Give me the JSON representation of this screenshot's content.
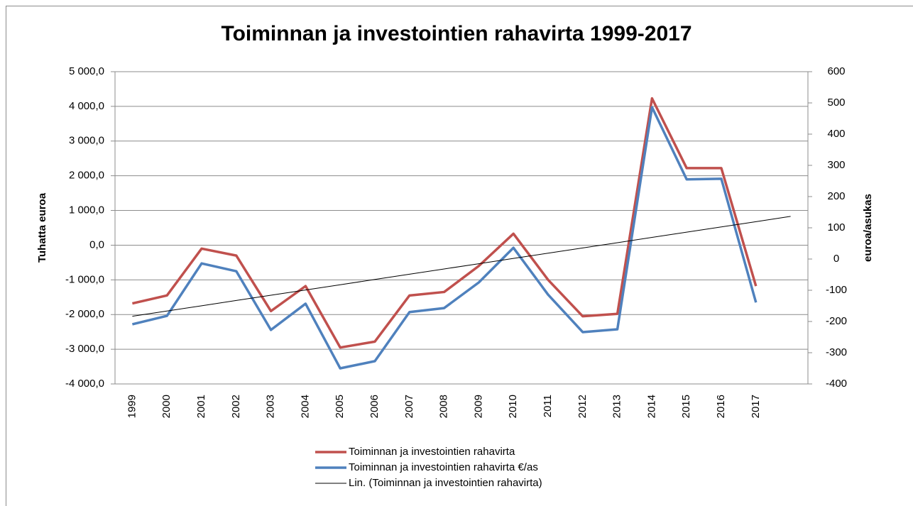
{
  "chart_data": {
    "type": "line",
    "title": "Toiminnan ja investointien rahavirta 1999-2017",
    "ylabel": "Tuhatta euroa",
    "y2label": "euroa/asukas",
    "categories": [
      "1999",
      "2000",
      "2001",
      "2002",
      "2003",
      "2004",
      "2005",
      "2006",
      "2007",
      "2008",
      "2009",
      "2010",
      "2011",
      "2012",
      "2013",
      "2014",
      "2015",
      "2016",
      "2017",
      null
    ],
    "ylim": [
      -4000,
      5000
    ],
    "yticks": [
      {
        "value": -4000,
        "label": "-4 000,0"
      },
      {
        "value": -3000,
        "label": "-3 000,0"
      },
      {
        "value": -2000,
        "label": "-2 000,0"
      },
      {
        "value": -1000,
        "label": "-1 000,0"
      },
      {
        "value": 0,
        "label": "0,0"
      },
      {
        "value": 1000,
        "label": "1 000,0"
      },
      {
        "value": 2000,
        "label": "2 000,0"
      },
      {
        "value": 3000,
        "label": "3 000,0"
      },
      {
        "value": 4000,
        "label": "4 000,0"
      },
      {
        "value": 5000,
        "label": "5 000,0"
      }
    ],
    "y2lim": [
      -400,
      600
    ],
    "y2ticks": [
      -400,
      -300,
      -200,
      -100,
      0,
      100,
      200,
      300,
      400,
      500,
      600
    ],
    "grid": true,
    "legend": "bottom",
    "series": [
      {
        "name": "Toiminnan ja investointien rahavirta",
        "color": "#c0504d",
        "values": [
          -1680,
          -1450,
          -100,
          -300,
          -1900,
          -1180,
          -2950,
          -2780,
          -1450,
          -1350,
          -600,
          330,
          -1000,
          -2050,
          -1980,
          4230,
          2220,
          2220,
          -1180,
          null
        ]
      },
      {
        "name": "Toiminnan ja investointien rahavirta €/as",
        "color": "#4f81bd",
        "axis": "y2",
        "values": [
          -209,
          -182,
          -14,
          -39,
          -227,
          -143,
          -350,
          -327,
          -170,
          -157,
          -75,
          36,
          -114,
          -234,
          -225,
          486,
          255,
          257,
          -139,
          null
        ]
      },
      {
        "name": "Lin. (Toiminnan ja investointien rahavirta)",
        "color": "#000000",
        "values": [
          -2050,
          -1898,
          -1747,
          -1595,
          -1444,
          -1292,
          -1141,
          -989,
          -838,
          -686,
          -535,
          -383,
          -232,
          -80,
          71,
          223,
          374,
          526,
          677,
          829
        ]
      }
    ]
  }
}
